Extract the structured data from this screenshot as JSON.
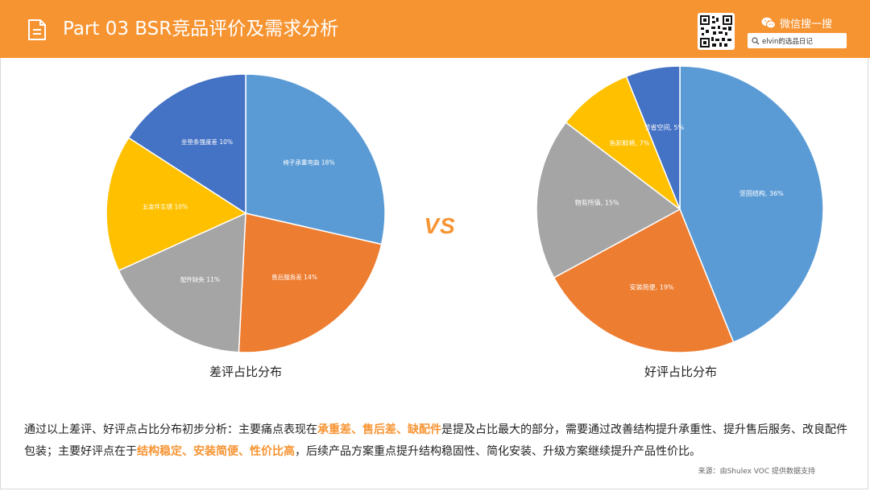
{
  "header": {
    "title": "Part 03  BSR竞品评价及需求分析",
    "wechat_label": "微信搜一搜",
    "search_value": "elvin的选品日记"
  },
  "colors": {
    "accent": "#f79432",
    "blue": "#5b9bd5",
    "orange": "#ed7d31",
    "gray": "#a5a5a5",
    "yellow": "#ffc000",
    "darkblue": "#4472c4"
  },
  "vs_label": "VS",
  "chart_data": [
    {
      "type": "pie",
      "title": "差评占比分布",
      "slices": [
        {
          "label": "椅子承重弯曲 18%",
          "value": 18,
          "color": "#5b9bd5"
        },
        {
          "label": "售后服务差 14%",
          "value": 14,
          "color": "#ed7d31"
        },
        {
          "label": "配件缺失 11%",
          "value": 11,
          "color": "#a5a5a5"
        },
        {
          "label": "五金件生锈 10%",
          "value": 10,
          "color": "#ffc000"
        },
        {
          "label": "坐垫条强度差 10%",
          "value": 10,
          "color": "#4472c4"
        }
      ]
    },
    {
      "type": "pie",
      "title": "好评占比分布",
      "slices": [
        {
          "label": "坚固结构, 36%",
          "value": 36,
          "color": "#5b9bd5"
        },
        {
          "label": "安装简便, 19%",
          "value": 19,
          "color": "#ed7d31"
        },
        {
          "label": "物有所值, 15%",
          "value": 15,
          "color": "#a5a5a5"
        },
        {
          "label": "色彩鲜艳, 7%",
          "value": 7,
          "color": "#ffc000"
        },
        {
          "label": "节省空间, 5%",
          "value": 5,
          "color": "#4472c4"
        }
      ]
    }
  ],
  "summary": {
    "part1": "通过以上差评、好评点占比分布初步分析：主要痛点表现在",
    "highlight1": "承重差、售后差、缺配件",
    "part2": "是提及占比最大的部分，需要通过改善结构提升承重性、提升售后服务、改良配件包装；主要好评点在于",
    "highlight2": "结构稳定、安装简便、性价比高",
    "part3": "，后续产品方案重点提升结构稳固性、简化安装、升级方案继续提升产品性价比。"
  },
  "source": "来源：由Shulex VOC 提供数据支持"
}
